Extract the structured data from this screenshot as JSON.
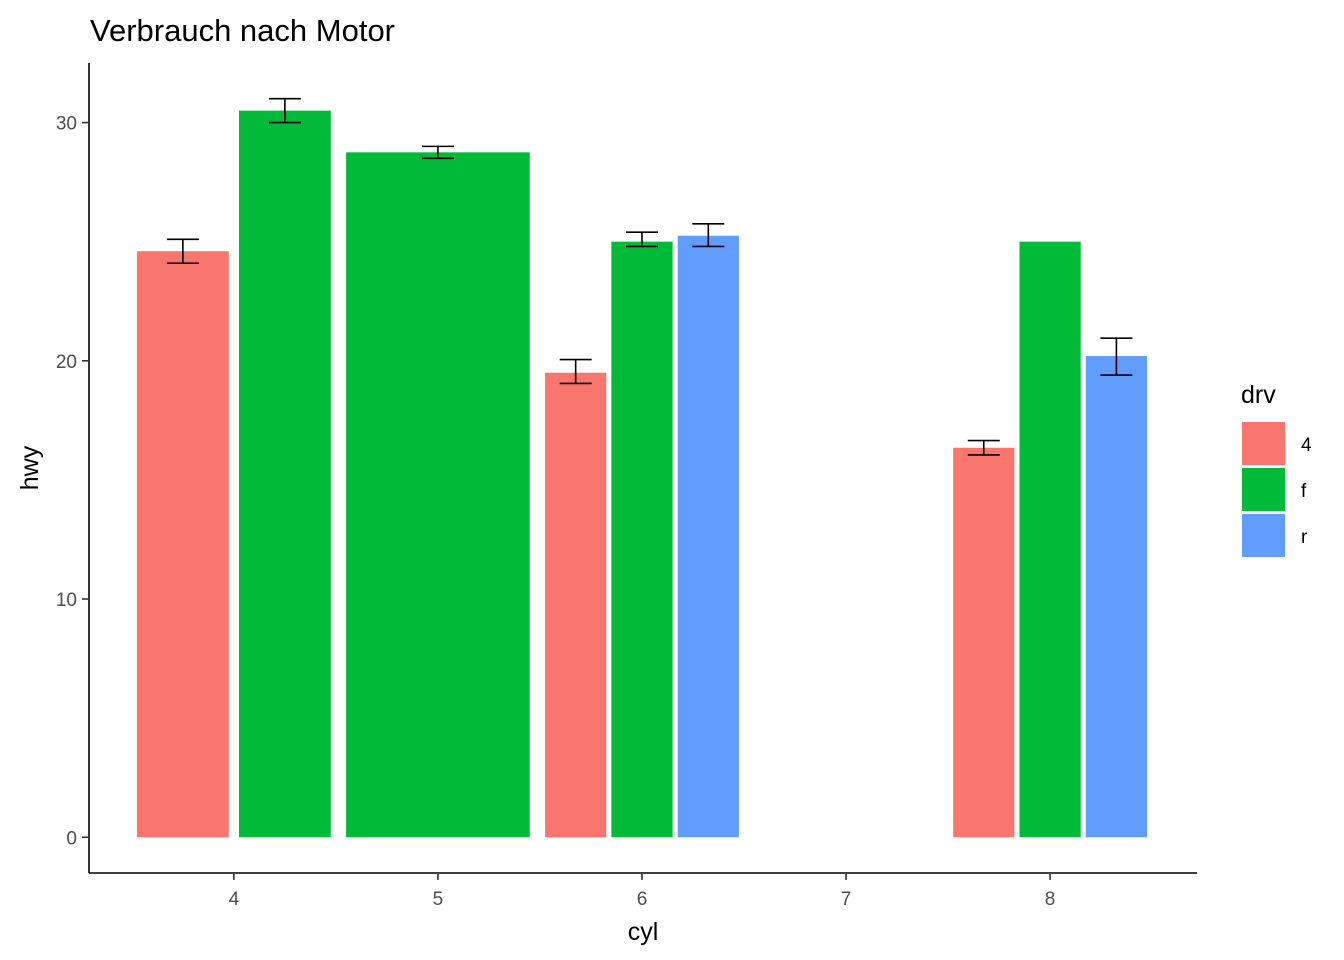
{
  "chart_data": {
    "type": "bar",
    "title": "Verbrauch nach Motor",
    "xlabel": "cyl",
    "ylabel": "hwy",
    "xlim": [
      3.29,
      8.72
    ],
    "ylim": [
      -1.5,
      32.5
    ],
    "x_ticks": [
      4,
      5,
      6,
      7,
      8
    ],
    "y_ticks": [
      0,
      10,
      20,
      30
    ],
    "grid": false,
    "legend": {
      "title": "drv",
      "placement": "right",
      "entries": [
        {
          "label": "4",
          "color": "#F8766D"
        },
        {
          "label": "f",
          "color": "#00BA38"
        },
        {
          "label": "r",
          "color": "#619CFF"
        }
      ]
    },
    "bars": [
      {
        "cyl": 4,
        "drv": "4",
        "x_from": 3.525,
        "x_to": 3.975,
        "value": 24.6,
        "err_low": 24.1,
        "err_high": 25.1
      },
      {
        "cyl": 4,
        "drv": "f",
        "x_from": 4.025,
        "x_to": 4.475,
        "value": 30.5,
        "err_low": 30.0,
        "err_high": 31.0
      },
      {
        "cyl": 5,
        "drv": "f",
        "x_from": 4.55,
        "x_to": 5.45,
        "value": 28.75,
        "err_low": 28.5,
        "err_high": 29.0
      },
      {
        "cyl": 6,
        "drv": "4",
        "x_from": 5.525,
        "x_to": 5.825,
        "value": 19.5,
        "err_low": 19.05,
        "err_high": 20.05
      },
      {
        "cyl": 6,
        "drv": "f",
        "x_from": 5.85,
        "x_to": 6.15,
        "value": 25.0,
        "err_low": 24.8,
        "err_high": 25.4
      },
      {
        "cyl": 6,
        "drv": "r",
        "x_from": 6.175,
        "x_to": 6.475,
        "value": 25.25,
        "err_low": 24.8,
        "err_high": 25.75
      },
      {
        "cyl": 8,
        "drv": "4",
        "x_from": 7.525,
        "x_to": 7.825,
        "value": 16.35,
        "err_low": 16.05,
        "err_high": 16.65
      },
      {
        "cyl": 8,
        "drv": "f",
        "x_from": 7.85,
        "x_to": 8.15,
        "value": 25.0,
        "err_low": null,
        "err_high": null
      },
      {
        "cyl": 8,
        "drv": "r",
        "x_from": 8.175,
        "x_to": 8.475,
        "value": 20.2,
        "err_low": 19.4,
        "err_high": 20.95
      }
    ]
  }
}
